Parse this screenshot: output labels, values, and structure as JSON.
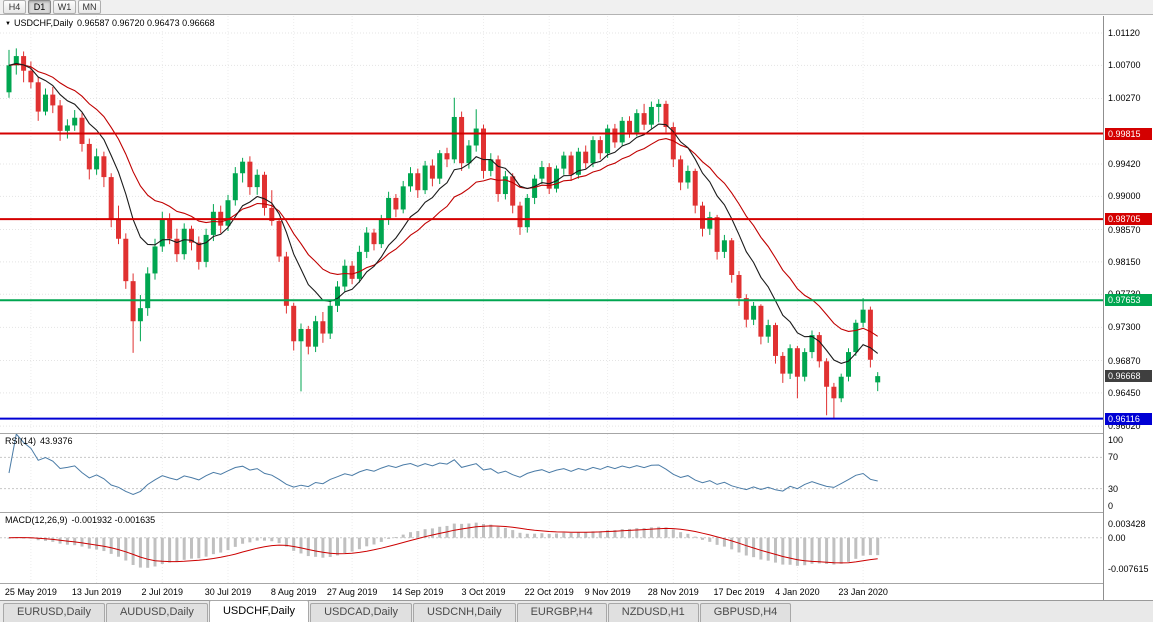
{
  "toolbar": {
    "timeframes": [
      {
        "label": "H4",
        "active": false
      },
      {
        "label": "D1",
        "active": true
      },
      {
        "label": "W1",
        "active": false
      },
      {
        "label": "MN",
        "active": false
      }
    ]
  },
  "panes": {
    "main": {
      "dropdown_icon": "▼",
      "symbol": "USDCHF,Daily",
      "ohlc": "0.96587 0.96720 0.96473 0.96668"
    },
    "rsi": {
      "name": "RSI(14)",
      "value": "43.9376"
    },
    "macd": {
      "name": "MACD(12,26,9)",
      "value": "-0.001932 -0.001635"
    }
  },
  "tabs": [
    {
      "label": "EURUSD,Daily",
      "active": false
    },
    {
      "label": "AUDUSD,Daily",
      "active": false
    },
    {
      "label": "USDCHF,Daily",
      "active": true
    },
    {
      "label": "USDCAD,Daily",
      "active": false
    },
    {
      "label": "USDCNH,Daily",
      "active": false
    },
    {
      "label": "EURGBP,H4",
      "active": false
    },
    {
      "label": "NZDUSD,H1",
      "active": false
    },
    {
      "label": "GBPUSD,H4",
      "active": false
    }
  ],
  "colors": {
    "bull": "#00a650",
    "bear": "#e03131",
    "ma_fast": "#1b1b1b",
    "ma_slow": "#c00000",
    "rsi_line": "#4a7ba6",
    "rsi_guide": "#c8c8c8",
    "macd_hist": "#c0c0c0",
    "macd_signal": "#cc0000",
    "grid": "#e4e4e4",
    "current_badge": "#3f3f3f"
  },
  "chart_data": {
    "type": "candlestick",
    "title": "USDCHF,Daily",
    "symbol": "USDCHF",
    "timeframe": "Daily",
    "current": {
      "open": 0.96587,
      "high": 0.9672,
      "low": 0.96473,
      "close": 0.96668,
      "label": "0.96668"
    },
    "price_axis_range": [
      0.9593,
      1.0134
    ],
    "price_ticks": [
      {
        "v": 1.0112,
        "label": "1.01120"
      },
      {
        "v": 1.007,
        "label": "1.00700"
      },
      {
        "v": 1.0027,
        "label": "1.00270"
      },
      {
        "v": 0.9942,
        "label": "0.99420"
      },
      {
        "v": 0.99,
        "label": "0.99000"
      },
      {
        "v": 0.9857,
        "label": "0.98570"
      },
      {
        "v": 0.9815,
        "label": "0.98150"
      },
      {
        "v": 0.9773,
        "label": "0.97730"
      },
      {
        "v": 0.973,
        "label": "0.97300"
      },
      {
        "v": 0.9687,
        "label": "0.96870"
      },
      {
        "v": 0.9645,
        "label": "0.96450"
      },
      {
        "v": 0.9602,
        "label": "0.96020"
      }
    ],
    "levels": [
      {
        "price": 0.99815,
        "label": "0.99815",
        "color": "#d40000"
      },
      {
        "price": 0.98705,
        "label": "0.98705",
        "color": "#d40000"
      },
      {
        "price": 0.97653,
        "label": "0.97653",
        "color": "#00a650"
      },
      {
        "price": 0.96116,
        "label": "0.96116",
        "color": "#0000d4"
      }
    ],
    "date_labels": [
      {
        "i": 3,
        "label": "25 May 2019"
      },
      {
        "i": 12,
        "label": "13 Jun 2019"
      },
      {
        "i": 21,
        "label": "2 Jul 2019"
      },
      {
        "i": 30,
        "label": "30 Jul 2019"
      },
      {
        "i": 39,
        "label": "8 Aug 2019"
      },
      {
        "i": 47,
        "label": "27 Aug 2019"
      },
      {
        "i": 56,
        "label": "14 Sep 2019"
      },
      {
        "i": 65,
        "label": "3 Oct 2019"
      },
      {
        "i": 74,
        "label": "22 Oct 2019"
      },
      {
        "i": 82,
        "label": "9 Nov 2019"
      },
      {
        "i": 91,
        "label": "28 Nov 2019"
      },
      {
        "i": 100,
        "label": "17 Dec 2019"
      },
      {
        "i": 108,
        "label": "4 Jan 2020"
      },
      {
        "i": 117,
        "label": "23 Jan 2020"
      }
    ],
    "indicators": {
      "rsi": {
        "period": 14,
        "current": 43.9376,
        "scale_ticks": [
          100,
          70,
          30,
          0
        ],
        "guides": [
          70,
          30
        ]
      },
      "macd": {
        "fast": 12,
        "slow": 26,
        "signal": 9,
        "current_macd": -0.001932,
        "current_signal": -0.001635,
        "axis_ticks": [
          {
            "v": 0.003428,
            "label": "0.003428"
          },
          {
            "v": 0,
            "label": "0.00"
          },
          {
            "v": -0.007615,
            "label": "-0.007615"
          }
        ]
      }
    },
    "candles": [
      [
        1.0035,
        1.009,
        1.0028,
        1.007
      ],
      [
        1.007,
        1.0092,
        1.0058,
        1.0082
      ],
      [
        1.0082,
        1.0088,
        1.0048,
        1.0063
      ],
      [
        1.0063,
        1.0075,
        1.004,
        1.0048
      ],
      [
        1.0048,
        1.0055,
        0.9998,
        1.001
      ],
      [
        1.001,
        1.004,
        1.0005,
        1.0032
      ],
      [
        1.0032,
        1.0042,
        1.0008,
        1.0018
      ],
      [
        1.0018,
        1.0025,
        0.9972,
        0.9985
      ],
      [
        0.9985,
        1.0,
        0.9975,
        0.9992
      ],
      [
        0.9992,
        1.0012,
        0.9985,
        1.0002
      ],
      [
        1.0002,
        1.0008,
        0.9958,
        0.9968
      ],
      [
        0.9968,
        0.9975,
        0.9922,
        0.9935
      ],
      [
        0.9935,
        0.9962,
        0.9928,
        0.9952
      ],
      [
        0.9952,
        0.9958,
        0.9912,
        0.9925
      ],
      [
        0.9925,
        0.993,
        0.986,
        0.987
      ],
      [
        0.987,
        0.9888,
        0.9838,
        0.9845
      ],
      [
        0.9845,
        0.9852,
        0.978,
        0.979
      ],
      [
        0.979,
        0.98,
        0.9697,
        0.9738
      ],
      [
        0.9738,
        0.9772,
        0.9712,
        0.9755
      ],
      [
        0.9755,
        0.9808,
        0.9745,
        0.98
      ],
      [
        0.98,
        0.9845,
        0.9792,
        0.9835
      ],
      [
        0.9835,
        0.988,
        0.9828,
        0.987
      ],
      [
        0.987,
        0.9878,
        0.9838,
        0.9845
      ],
      [
        0.9845,
        0.9858,
        0.9815,
        0.9825
      ],
      [
        0.9825,
        0.9865,
        0.9818,
        0.9858
      ],
      [
        0.9858,
        0.9862,
        0.983,
        0.984
      ],
      [
        0.984,
        0.9848,
        0.9805,
        0.9815
      ],
      [
        0.9815,
        0.9858,
        0.9808,
        0.985
      ],
      [
        0.985,
        0.989,
        0.9842,
        0.988
      ],
      [
        0.988,
        0.9888,
        0.9852,
        0.9862
      ],
      [
        0.9862,
        0.9902,
        0.9855,
        0.9895
      ],
      [
        0.9895,
        0.9938,
        0.9888,
        0.993
      ],
      [
        0.993,
        0.995,
        0.9918,
        0.9945
      ],
      [
        0.9945,
        0.9952,
        0.9902,
        0.9912
      ],
      [
        0.9912,
        0.9935,
        0.9902,
        0.9928
      ],
      [
        0.9928,
        0.9932,
        0.9875,
        0.9885
      ],
      [
        0.9885,
        0.9908,
        0.9862,
        0.9868
      ],
      [
        0.9868,
        0.9872,
        0.9815,
        0.9822
      ],
      [
        0.9822,
        0.9828,
        0.9748,
        0.9758
      ],
      [
        0.9758,
        0.9762,
        0.97,
        0.9712
      ],
      [
        0.9712,
        0.9735,
        0.9647,
        0.9728
      ],
      [
        0.9728,
        0.9732,
        0.9695,
        0.9705
      ],
      [
        0.9705,
        0.9745,
        0.9698,
        0.9738
      ],
      [
        0.9738,
        0.975,
        0.971,
        0.9722
      ],
      [
        0.9722,
        0.9765,
        0.9715,
        0.9758
      ],
      [
        0.9758,
        0.979,
        0.975,
        0.9783
      ],
      [
        0.9783,
        0.9818,
        0.9776,
        0.981
      ],
      [
        0.981,
        0.9816,
        0.9786,
        0.9793
      ],
      [
        0.9793,
        0.9836,
        0.9788,
        0.9828
      ],
      [
        0.9828,
        0.986,
        0.982,
        0.9853
      ],
      [
        0.9853,
        0.9858,
        0.983,
        0.9838
      ],
      [
        0.9838,
        0.9876,
        0.9833,
        0.987
      ],
      [
        0.987,
        0.9906,
        0.9863,
        0.9898
      ],
      [
        0.9898,
        0.9903,
        0.9873,
        0.9883
      ],
      [
        0.9883,
        0.992,
        0.9878,
        0.9913
      ],
      [
        0.9913,
        0.9938,
        0.9906,
        0.993
      ],
      [
        0.993,
        0.9936,
        0.9898,
        0.9908
      ],
      [
        0.9908,
        0.9946,
        0.9903,
        0.994
      ],
      [
        0.994,
        0.9948,
        0.9913,
        0.9923
      ],
      [
        0.9923,
        0.996,
        0.9916,
        0.9956
      ],
      [
        0.9956,
        0.9963,
        0.9938,
        0.9948
      ],
      [
        0.9948,
        1.0028,
        0.9943,
        1.0003
      ],
      [
        1.0003,
        1.001,
        0.9933,
        0.9943
      ],
      [
        0.9943,
        0.9973,
        0.9936,
        0.9966
      ],
      [
        0.9966,
        1.0013,
        0.9958,
        0.9988
      ],
      [
        0.9988,
        0.9993,
        0.9923,
        0.9933
      ],
      [
        0.9933,
        0.9956,
        0.9926,
        0.9948
      ],
      [
        0.9948,
        0.9953,
        0.9893,
        0.9903
      ],
      [
        0.9903,
        0.9933,
        0.9896,
        0.9926
      ],
      [
        0.9926,
        0.993,
        0.9878,
        0.9888
      ],
      [
        0.9888,
        0.9893,
        0.985,
        0.986
      ],
      [
        0.986,
        0.9903,
        0.9853,
        0.9898
      ],
      [
        0.9898,
        0.9928,
        0.989,
        0.9923
      ],
      [
        0.9923,
        0.9946,
        0.9916,
        0.9938
      ],
      [
        0.9938,
        0.9943,
        0.9903,
        0.991
      ],
      [
        0.991,
        0.994,
        0.9905,
        0.9936
      ],
      [
        0.9936,
        0.9958,
        0.9928,
        0.9953
      ],
      [
        0.9953,
        0.9958,
        0.992,
        0.9928
      ],
      [
        0.9928,
        0.9963,
        0.9923,
        0.9958
      ],
      [
        0.9958,
        0.9966,
        0.9936,
        0.9943
      ],
      [
        0.9943,
        0.9978,
        0.9938,
        0.9973
      ],
      [
        0.9973,
        0.9978,
        0.9948,
        0.9956
      ],
      [
        0.9956,
        0.9993,
        0.995,
        0.9988
      ],
      [
        0.9988,
        0.9994,
        0.9963,
        0.997
      ],
      [
        0.997,
        1.0003,
        0.9966,
        0.9998
      ],
      [
        0.9998,
        1.0004,
        0.9976,
        0.9983
      ],
      [
        0.9983,
        1.0013,
        0.9978,
        1.0008
      ],
      [
        1.0008,
        1.002,
        0.9986,
        0.9993
      ],
      [
        0.9993,
        1.0023,
        0.9988,
        1.0016
      ],
      [
        1.0016,
        1.0026,
        0.9996,
        1.002
      ],
      [
        1.002,
        1.0024,
        0.9983,
        0.999
      ],
      [
        0.999,
        0.9996,
        0.9938,
        0.9948
      ],
      [
        0.9948,
        0.9953,
        0.9908,
        0.9918
      ],
      [
        0.9918,
        0.994,
        0.991,
        0.9933
      ],
      [
        0.9933,
        0.9936,
        0.9878,
        0.9888
      ],
      [
        0.9888,
        0.9893,
        0.9848,
        0.9858
      ],
      [
        0.9858,
        0.988,
        0.985,
        0.9873
      ],
      [
        0.9873,
        0.9876,
        0.9818,
        0.9828
      ],
      [
        0.9828,
        0.985,
        0.982,
        0.9843
      ],
      [
        0.9843,
        0.9846,
        0.9788,
        0.9798
      ],
      [
        0.9798,
        0.9803,
        0.9758,
        0.9768
      ],
      [
        0.9768,
        0.9773,
        0.973,
        0.974
      ],
      [
        0.974,
        0.9763,
        0.9733,
        0.9758
      ],
      [
        0.9758,
        0.976,
        0.9708,
        0.9718
      ],
      [
        0.9718,
        0.974,
        0.971,
        0.9733
      ],
      [
        0.9733,
        0.9736,
        0.9683,
        0.9693
      ],
      [
        0.9693,
        0.9698,
        0.9658,
        0.967
      ],
      [
        0.967,
        0.9708,
        0.9663,
        0.9703
      ],
      [
        0.9703,
        0.9706,
        0.9638,
        0.9666
      ],
      [
        0.9666,
        0.9703,
        0.966,
        0.9698
      ],
      [
        0.9698,
        0.9726,
        0.969,
        0.972
      ],
      [
        0.972,
        0.9724,
        0.9678,
        0.9686
      ],
      [
        0.9686,
        0.969,
        0.9616,
        0.9653
      ],
      [
        0.9653,
        0.9658,
        0.9612,
        0.9638
      ],
      [
        0.9638,
        0.967,
        0.9633,
        0.9666
      ],
      [
        0.9666,
        0.9703,
        0.966,
        0.9698
      ],
      [
        0.9698,
        0.974,
        0.9693,
        0.9736
      ],
      [
        0.9736,
        0.9768,
        0.973,
        0.9753
      ],
      [
        0.9753,
        0.9757,
        0.9678,
        0.9688
      ],
      [
        0.96587,
        0.9672,
        0.96473,
        0.96668
      ]
    ]
  }
}
